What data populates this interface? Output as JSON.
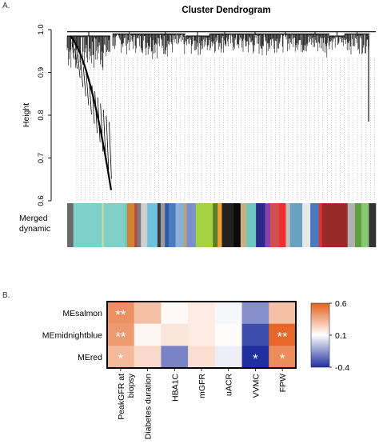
{
  "panel_a_label": "A.",
  "panel_b_label": "B.",
  "chart_data": [
    {
      "type": "dendrogram",
      "title": "Cluster Dendrogram",
      "ylabel": "Height",
      "ylim": [
        0.6,
        1.0
      ],
      "yticks": [
        "0.6",
        "0.7",
        "0.8",
        "0.9",
        "1.0"
      ],
      "color_bar_label_1": "Merged",
      "color_bar_label_2": "dynamic",
      "module_colors": [
        "#6b6b6b",
        "#7fd0c8",
        "#d8d890",
        "#7fd0c8",
        "#6cc8c0",
        "#d1822e",
        "#b04a4a",
        "#7a7a7a",
        "#d0d0d0",
        "#6fc3de",
        "#3a3a3a",
        "#9a9a9a",
        "#2f5aa8",
        "#4a7bc0",
        "#8ab0d8",
        "#b9a37a",
        "#7a8fd0",
        "#a6d140",
        "#5e7d2a",
        "#f0a030",
        "#222222",
        "#0a0a0a",
        "#c4b08a",
        "#6cc8c0",
        "#2a2a8a",
        "#8844aa",
        "#d05050",
        "#f03030",
        "#c0c0c0",
        "#6aa0c0",
        "#e8e8e8",
        "#4a7bc0",
        "#e03030",
        "#9a2a2a",
        "#b0b0b0",
        "#5aa040",
        "#88c870",
        "#333333"
      ],
      "module_widths": [
        2.3,
        10.8,
        0.6,
        8,
        0.8,
        2.8,
        1,
        1.4,
        2.4,
        3.8,
        1.2,
        1.6,
        1.4,
        2.6,
        3,
        1.2,
        3.4,
        6.4,
        1.8,
        1.6,
        4.4,
        2.6,
        2.4,
        3.4,
        3.4,
        2,
        3.2,
        2.6,
        1.6,
        4.6,
        3,
        3.2,
        1.2,
        9.6,
        2.8,
        2.4,
        2.8,
        2.6
      ]
    },
    {
      "type": "heatmap",
      "rows": [
        "MEsalmon",
        "MEmidnightblue",
        "MEred"
      ],
      "columns": [
        "PeakGFR at biopsy",
        "Diabetes duration",
        "HBA1C",
        "mGFR",
        "uACR",
        "VVMC",
        "FPW"
      ],
      "values": [
        [
          0.45,
          0.3,
          0.12,
          0.16,
          0.08,
          -0.17,
          0.3
        ],
        [
          0.42,
          0.13,
          0.18,
          0.16,
          0.11,
          -0.33,
          0.58
        ],
        [
          0.32,
          0.22,
          -0.2,
          0.2,
          0.06,
          -0.4,
          0.46
        ]
      ],
      "significance": [
        [
          "**",
          "",
          "",
          "",
          "",
          "",
          ""
        ],
        [
          "**",
          "",
          "",
          "",
          "",
          "",
          "**"
        ],
        [
          "*",
          "",
          "",
          "",
          "",
          "*",
          "*"
        ]
      ],
      "colorbar": {
        "min": -0.4,
        "mid": 0.1,
        "max": 0.6,
        "ticks": [
          "0.6",
          "0.1",
          "-0.4"
        ],
        "low_color": "#1f2f9e",
        "mid_color": "#ffffff",
        "high_color": "#e5611f"
      }
    }
  ]
}
